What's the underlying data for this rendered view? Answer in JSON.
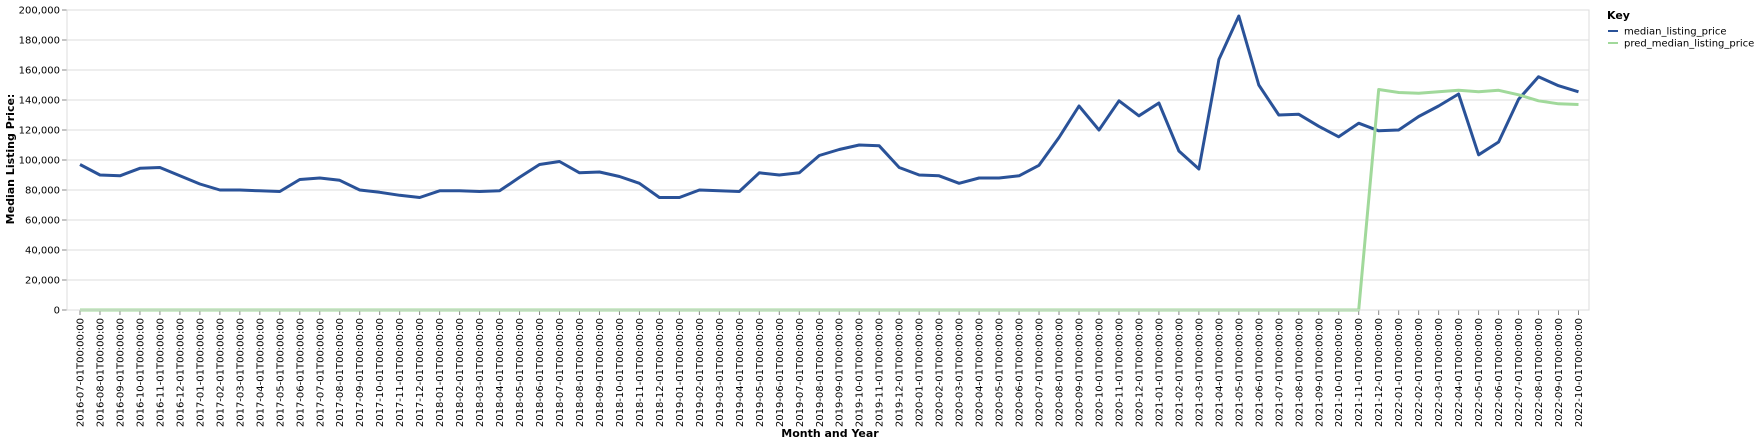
{
  "chart_data": {
    "type": "line",
    "xlabel": "Month and Year",
    "ylabel": "Median Listing Price:",
    "ylim": [
      0,
      200000
    ],
    "y_ticks": [
      "0",
      "20,000",
      "40,000",
      "60,000",
      "80,000",
      "100,000",
      "120,000",
      "140,000",
      "160,000",
      "180,000",
      "200,000"
    ],
    "grid": true,
    "legend": {
      "title": "Key",
      "position": "top-right"
    },
    "x": [
      "2016-07-01T00:00:00",
      "2016-08-01T00:00:00",
      "2016-09-01T00:00:00",
      "2016-10-01T00:00:00",
      "2016-11-01T00:00:00",
      "2016-12-01T00:00:00",
      "2017-01-01T00:00:00",
      "2017-02-01T00:00:00",
      "2017-03-01T00:00:00",
      "2017-04-01T00:00:00",
      "2017-05-01T00:00:00",
      "2017-06-01T00:00:00",
      "2017-07-01T00:00:00",
      "2017-08-01T00:00:00",
      "2017-09-01T00:00:00",
      "2017-10-01T00:00:00",
      "2017-11-01T00:00:00",
      "2017-12-01T00:00:00",
      "2018-01-01T00:00:00",
      "2018-02-01T00:00:00",
      "2018-03-01T00:00:00",
      "2018-04-01T00:00:00",
      "2018-05-01T00:00:00",
      "2018-06-01T00:00:00",
      "2018-07-01T00:00:00",
      "2018-08-01T00:00:00",
      "2018-09-01T00:00:00",
      "2018-10-01T00:00:00",
      "2018-11-01T00:00:00",
      "2018-12-01T00:00:00",
      "2019-01-01T00:00:00",
      "2019-02-01T00:00:00",
      "2019-03-01T00:00:00",
      "2019-04-01T00:00:00",
      "2019-05-01T00:00:00",
      "2019-06-01T00:00:00",
      "2019-07-01T00:00:00",
      "2019-08-01T00:00:00",
      "2019-09-01T00:00:00",
      "2019-10-01T00:00:00",
      "2019-11-01T00:00:00",
      "2019-12-01T00:00:00",
      "2020-01-01T00:00:00",
      "2020-02-01T00:00:00",
      "2020-03-01T00:00:00",
      "2020-04-01T00:00:00",
      "2020-05-01T00:00:00",
      "2020-06-01T00:00:00",
      "2020-07-01T00:00:00",
      "2020-08-01T00:00:00",
      "2020-09-01T00:00:00",
      "2020-10-01T00:00:00",
      "2020-11-01T00:00:00",
      "2020-12-01T00:00:00",
      "2021-01-01T00:00:00",
      "2021-02-01T00:00:00",
      "2021-03-01T00:00:00",
      "2021-04-01T00:00:00",
      "2021-05-01T00:00:00",
      "2021-06-01T00:00:00",
      "2021-07-01T00:00:00",
      "2021-08-01T00:00:00",
      "2021-09-01T00:00:00",
      "2021-10-01T00:00:00",
      "2021-11-01T00:00:00",
      "2021-12-01T00:00:00",
      "2022-01-01T00:00:00",
      "2022-02-01T00:00:00",
      "2022-03-01T00:00:00",
      "2022-04-01T00:00:00",
      "2022-05-01T00:00:00",
      "2022-06-01T00:00:00",
      "2022-07-01T00:00:00",
      "2022-08-01T00:00:00",
      "2022-09-01T00:00:00",
      "2022-10-01T00:00:00"
    ],
    "series": [
      {
        "name": "median_listing_price",
        "color": "#2a5298",
        "values": [
          97000,
          90000,
          89500,
          94500,
          95000,
          89500,
          84000,
          80000,
          80000,
          79500,
          79000,
          87000,
          88000,
          86500,
          80000,
          78500,
          76500,
          75000,
          79500,
          79500,
          79000,
          79500,
          88500,
          97000,
          99000,
          91500,
          92000,
          89000,
          84500,
          75000,
          75000,
          80000,
          79500,
          79000,
          91500,
          90000,
          91500,
          103000,
          107000,
          110000,
          109500,
          95000,
          90000,
          89500,
          84500,
          88000,
          88000,
          89500,
          96500,
          115000,
          136000,
          120000,
          139500,
          129500,
          138000,
          106000,
          94000,
          167000,
          196000,
          150000,
          130000,
          130500,
          122500,
          115500,
          124500,
          119500,
          120000,
          129000,
          136000,
          144000,
          103500,
          112000,
          140500,
          155500,
          149500,
          145500
        ]
      },
      {
        "name": "pred_median_listing_price",
        "color": "#a1d99b",
        "values": [
          0,
          0,
          0,
          0,
          0,
          0,
          0,
          0,
          0,
          0,
          0,
          0,
          0,
          0,
          0,
          0,
          0,
          0,
          0,
          0,
          0,
          0,
          0,
          0,
          0,
          0,
          0,
          0,
          0,
          0,
          0,
          0,
          0,
          0,
          0,
          0,
          0,
          0,
          0,
          0,
          0,
          0,
          0,
          0,
          0,
          0,
          0,
          0,
          0,
          0,
          0,
          0,
          0,
          0,
          0,
          0,
          0,
          0,
          0,
          0,
          0,
          0,
          0,
          0,
          0,
          147000,
          145000,
          144500,
          145500,
          146500,
          145500,
          146500,
          143500,
          139500,
          137500,
          137000
        ]
      }
    ]
  }
}
